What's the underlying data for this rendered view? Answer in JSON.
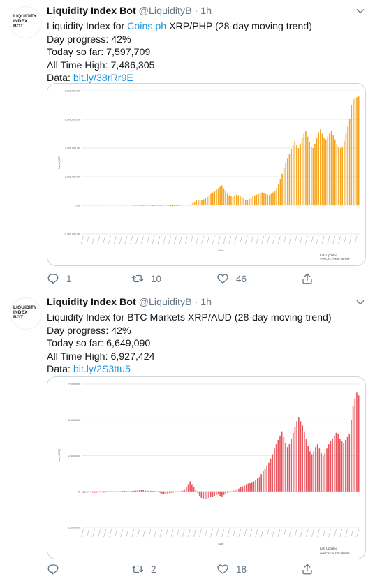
{
  "tweets": [
    {
      "author": {
        "avatar_text": [
          "LIQUIDITY",
          "INDEX",
          "BOT"
        ],
        "name": "Liquidity Index Bot",
        "handle": "@LiquidityB",
        "separator": "·",
        "time": "1h"
      },
      "text": {
        "line1_prefix": "Liquidity Index for ",
        "line1_link": "Coins.ph",
        "line1_suffix": " XRP/PHP (28-day moving trend)",
        "line2": "Day progress: 42%",
        "line3": "Today so far: 7,597,709",
        "line4": "All Time High: 7,486,305",
        "line5_prefix": "Data: ",
        "line5_link": "bit.ly/38rRr9E"
      },
      "counts": {
        "reply": "1",
        "retweet": "10",
        "like": "46"
      },
      "icons": {
        "reply": "reply-icon",
        "retweet": "retweet-icon",
        "like": "heart-icon",
        "share": "share-icon",
        "menu": "chevron-down-icon"
      },
      "chart_data": {
        "type": "bar",
        "color": "#f5a623",
        "title": "",
        "xlabel": "Date",
        "ylabel": "Index (XRP)",
        "ylim": [
          -2000000,
          8000000
        ],
        "yticks": [
          "8,000,000.00",
          "6,000,000.00",
          "4,000,000.00",
          "2,000,000.00",
          "0.00",
          "-2,000,000.00"
        ],
        "ytick_values": [
          8000000,
          6000000,
          4000000,
          2000000,
          0,
          -2000000
        ],
        "footer_label": "Last Updated",
        "footer_timestamp": "2020-03-11T09:46:23Z",
        "values": [
          20000,
          25000,
          18000,
          22000,
          30000,
          28000,
          15000,
          12000,
          20000,
          25000,
          30000,
          35000,
          28000,
          22000,
          30000,
          40000,
          35000,
          30000,
          25000,
          30000,
          45000,
          55000,
          60000,
          50000,
          40000,
          30000,
          20000,
          10000,
          5000,
          -20000,
          -40000,
          -60000,
          -50000,
          -40000,
          -30000,
          -20000,
          -10000,
          -30000,
          -50000,
          -60000,
          -40000,
          -20000,
          -10000,
          0,
          10000,
          20000,
          10000,
          -20000,
          -50000,
          -70000,
          -60000,
          -40000,
          -20000,
          0,
          40000,
          60000,
          50000,
          30000,
          20000,
          80000,
          150000,
          250000,
          350000,
          400000,
          380000,
          350000,
          420000,
          500000,
          600000,
          700000,
          800000,
          900000,
          1000000,
          1100000,
          1200000,
          1300000,
          1400000,
          1200000,
          1000000,
          800000,
          700000,
          650000,
          600000,
          700000,
          750000,
          700000,
          650000,
          600000,
          500000,
          400000,
          350000,
          450000,
          550000,
          650000,
          700000,
          750000,
          800000,
          850000,
          900000,
          850000,
          800000,
          750000,
          700000,
          800000,
          900000,
          1000000,
          1200000,
          1500000,
          1800000,
          2200000,
          2600000,
          3000000,
          3300000,
          3600000,
          3900000,
          4200000,
          4500000,
          4200000,
          4000000,
          4300000,
          4700000,
          5000000,
          5200000,
          4800000,
          4400000,
          4100000,
          4000000,
          4300000,
          4700000,
          5100000,
          5300000,
          5000000,
          4700000,
          4600000,
          4800000,
          5000000,
          5200000,
          4900000,
          4600000,
          4300000,
          4100000,
          4000000,
          4100000,
          4500000,
          5000000,
          5500000,
          6000000,
          7000000,
          7400000,
          7500000,
          7550000,
          7600000
        ]
      }
    },
    {
      "author": {
        "avatar_text": [
          "LIQUIDITY",
          "INDEX",
          "BOT"
        ],
        "name": "Liquidity Index Bot",
        "handle": "@LiquidityB",
        "separator": "·",
        "time": "1h"
      },
      "text": {
        "line1_prefix": "Liquidity Index for BTC Markets XRP/AUD (28-day moving trend)",
        "line1_link": "",
        "line1_suffix": "",
        "line2": "Day progress: 42%",
        "line3": "Today so far: 6,649,090",
        "line4": "All Time High: 6,927,424",
        "line5_prefix": "Data: ",
        "line5_link": "bit.ly/2S3ttu5"
      },
      "counts": {
        "reply": "",
        "retweet": "2",
        "like": "18"
      },
      "icons": {
        "reply": "reply-icon",
        "retweet": "retweet-icon",
        "like": "heart-icon",
        "share": "share-icon",
        "menu": "chevron-down-icon"
      },
      "chart_data": {
        "type": "bar",
        "color": "#e8575f",
        "title": "",
        "xlabel": "Date",
        "ylabel": "Index (XRP)",
        "ylim": [
          -2500000,
          7500000
        ],
        "yticks": [
          "7,500,000",
          "5,000,000",
          "2,500,000",
          "0",
          "-2,500,000"
        ],
        "ytick_values": [
          7500000,
          5000000,
          2500000,
          0,
          -2500000
        ],
        "footer_label": "Last Updated",
        "footer_timestamp": "2020-03-11T09:50:50Z",
        "values": [
          -100000,
          -80000,
          -90000,
          -70000,
          -60000,
          -80000,
          -100000,
          -90000,
          -70000,
          -50000,
          -60000,
          -80000,
          -70000,
          -50000,
          -30000,
          -40000,
          -60000,
          -50000,
          -30000,
          -20000,
          0,
          20000,
          40000,
          30000,
          10000,
          0,
          20000,
          40000,
          60000,
          80000,
          100000,
          120000,
          100000,
          80000,
          60000,
          50000,
          40000,
          30000,
          20000,
          0,
          -50000,
          -100000,
          -150000,
          -200000,
          -180000,
          -150000,
          -120000,
          -100000,
          -80000,
          -60000,
          -40000,
          -20000,
          0,
          50000,
          150000,
          300000,
          500000,
          700000,
          500000,
          300000,
          100000,
          -100000,
          -300000,
          -450000,
          -500000,
          -550000,
          -500000,
          -450000,
          -400000,
          -350000,
          -300000,
          -250000,
          -200000,
          -300000,
          -350000,
          -250000,
          -150000,
          -100000,
          -50000,
          0,
          50000,
          100000,
          150000,
          200000,
          300000,
          350000,
          400000,
          500000,
          550000,
          600000,
          650000,
          700000,
          800000,
          900000,
          1000000,
          1200000,
          1400000,
          1600000,
          1800000,
          2000000,
          2300000,
          2600000,
          3000000,
          3300000,
          3600000,
          3900000,
          4200000,
          3800000,
          3400000,
          3100000,
          3300000,
          3700000,
          4100000,
          4500000,
          4900000,
          5200000,
          4900000,
          4600000,
          4200000,
          3700000,
          3200000,
          2800000,
          2600000,
          2800000,
          3100000,
          3300000,
          3000000,
          2700000,
          2500000,
          2700000,
          3000000,
          3300000,
          3500000,
          3700000,
          3900000,
          4100000,
          4000000,
          3700000,
          3500000,
          3400000,
          3600000,
          3800000,
          4000000,
          5000000,
          6000000,
          6500000,
          6900000,
          6700000
        ]
      }
    }
  ]
}
